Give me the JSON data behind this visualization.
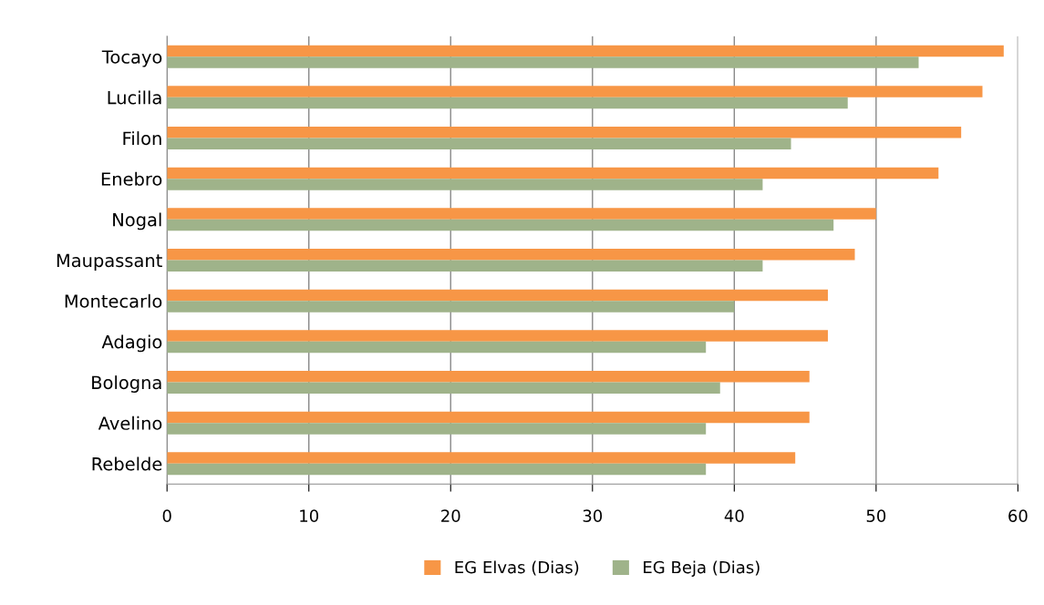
{
  "chart_data": {
    "type": "bar",
    "orientation": "horizontal",
    "categories": [
      "Tocayo",
      "Lucilla",
      "Filon",
      "Enebro",
      "Nogal",
      "Maupassant",
      "Montecarlo",
      "Adagio",
      "Bologna",
      "Avelino",
      "Rebelde"
    ],
    "series": [
      {
        "name": "EG Elvas (Dias)",
        "color": "#f79646",
        "values": [
          59.0,
          57.5,
          56.0,
          54.4,
          50.0,
          48.5,
          46.6,
          46.6,
          45.3,
          45.3,
          44.3
        ]
      },
      {
        "name": "EG Beja (Dias)",
        "color": "#9fb38a",
        "values": [
          53.0,
          48.0,
          44.0,
          42.0,
          47.0,
          42.0,
          40.0,
          38.0,
          39.0,
          38.0,
          38.0
        ]
      }
    ],
    "xlim": [
      0,
      60
    ],
    "xticks": [
      0,
      10,
      20,
      30,
      40,
      50,
      60
    ],
    "grid": "x",
    "legend": "bottom"
  }
}
